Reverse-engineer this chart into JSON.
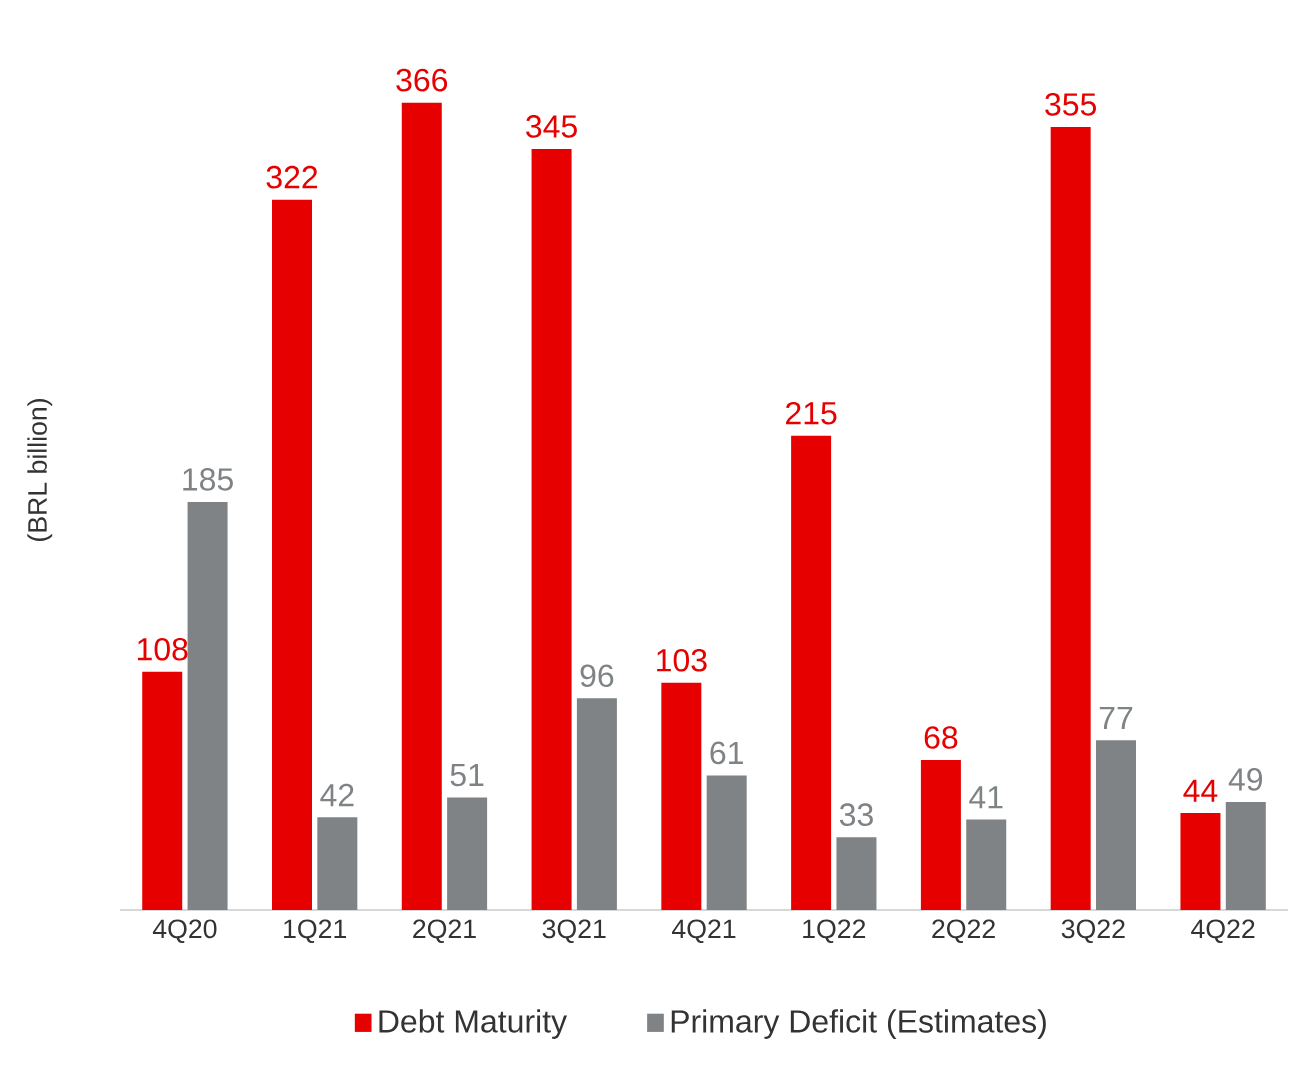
{
  "chart_data": {
    "type": "bar",
    "ylabel": "(BRL billion)",
    "categories": [
      "4Q20",
      "1Q21",
      "2Q21",
      "3Q21",
      "4Q21",
      "1Q22",
      "2Q22",
      "3Q22",
      "4Q22"
    ],
    "series": [
      {
        "name": "Debt Maturity",
        "color": "#e60000",
        "values": [
          108,
          322,
          366,
          345,
          103,
          215,
          68,
          355,
          44
        ]
      },
      {
        "name": "Primary Deficit (Estimates)",
        "color": "#7f8385",
        "values": [
          185,
          42,
          51,
          96,
          61,
          33,
          41,
          77,
          49
        ]
      }
    ],
    "data_labels": true,
    "legend": "bottom"
  }
}
